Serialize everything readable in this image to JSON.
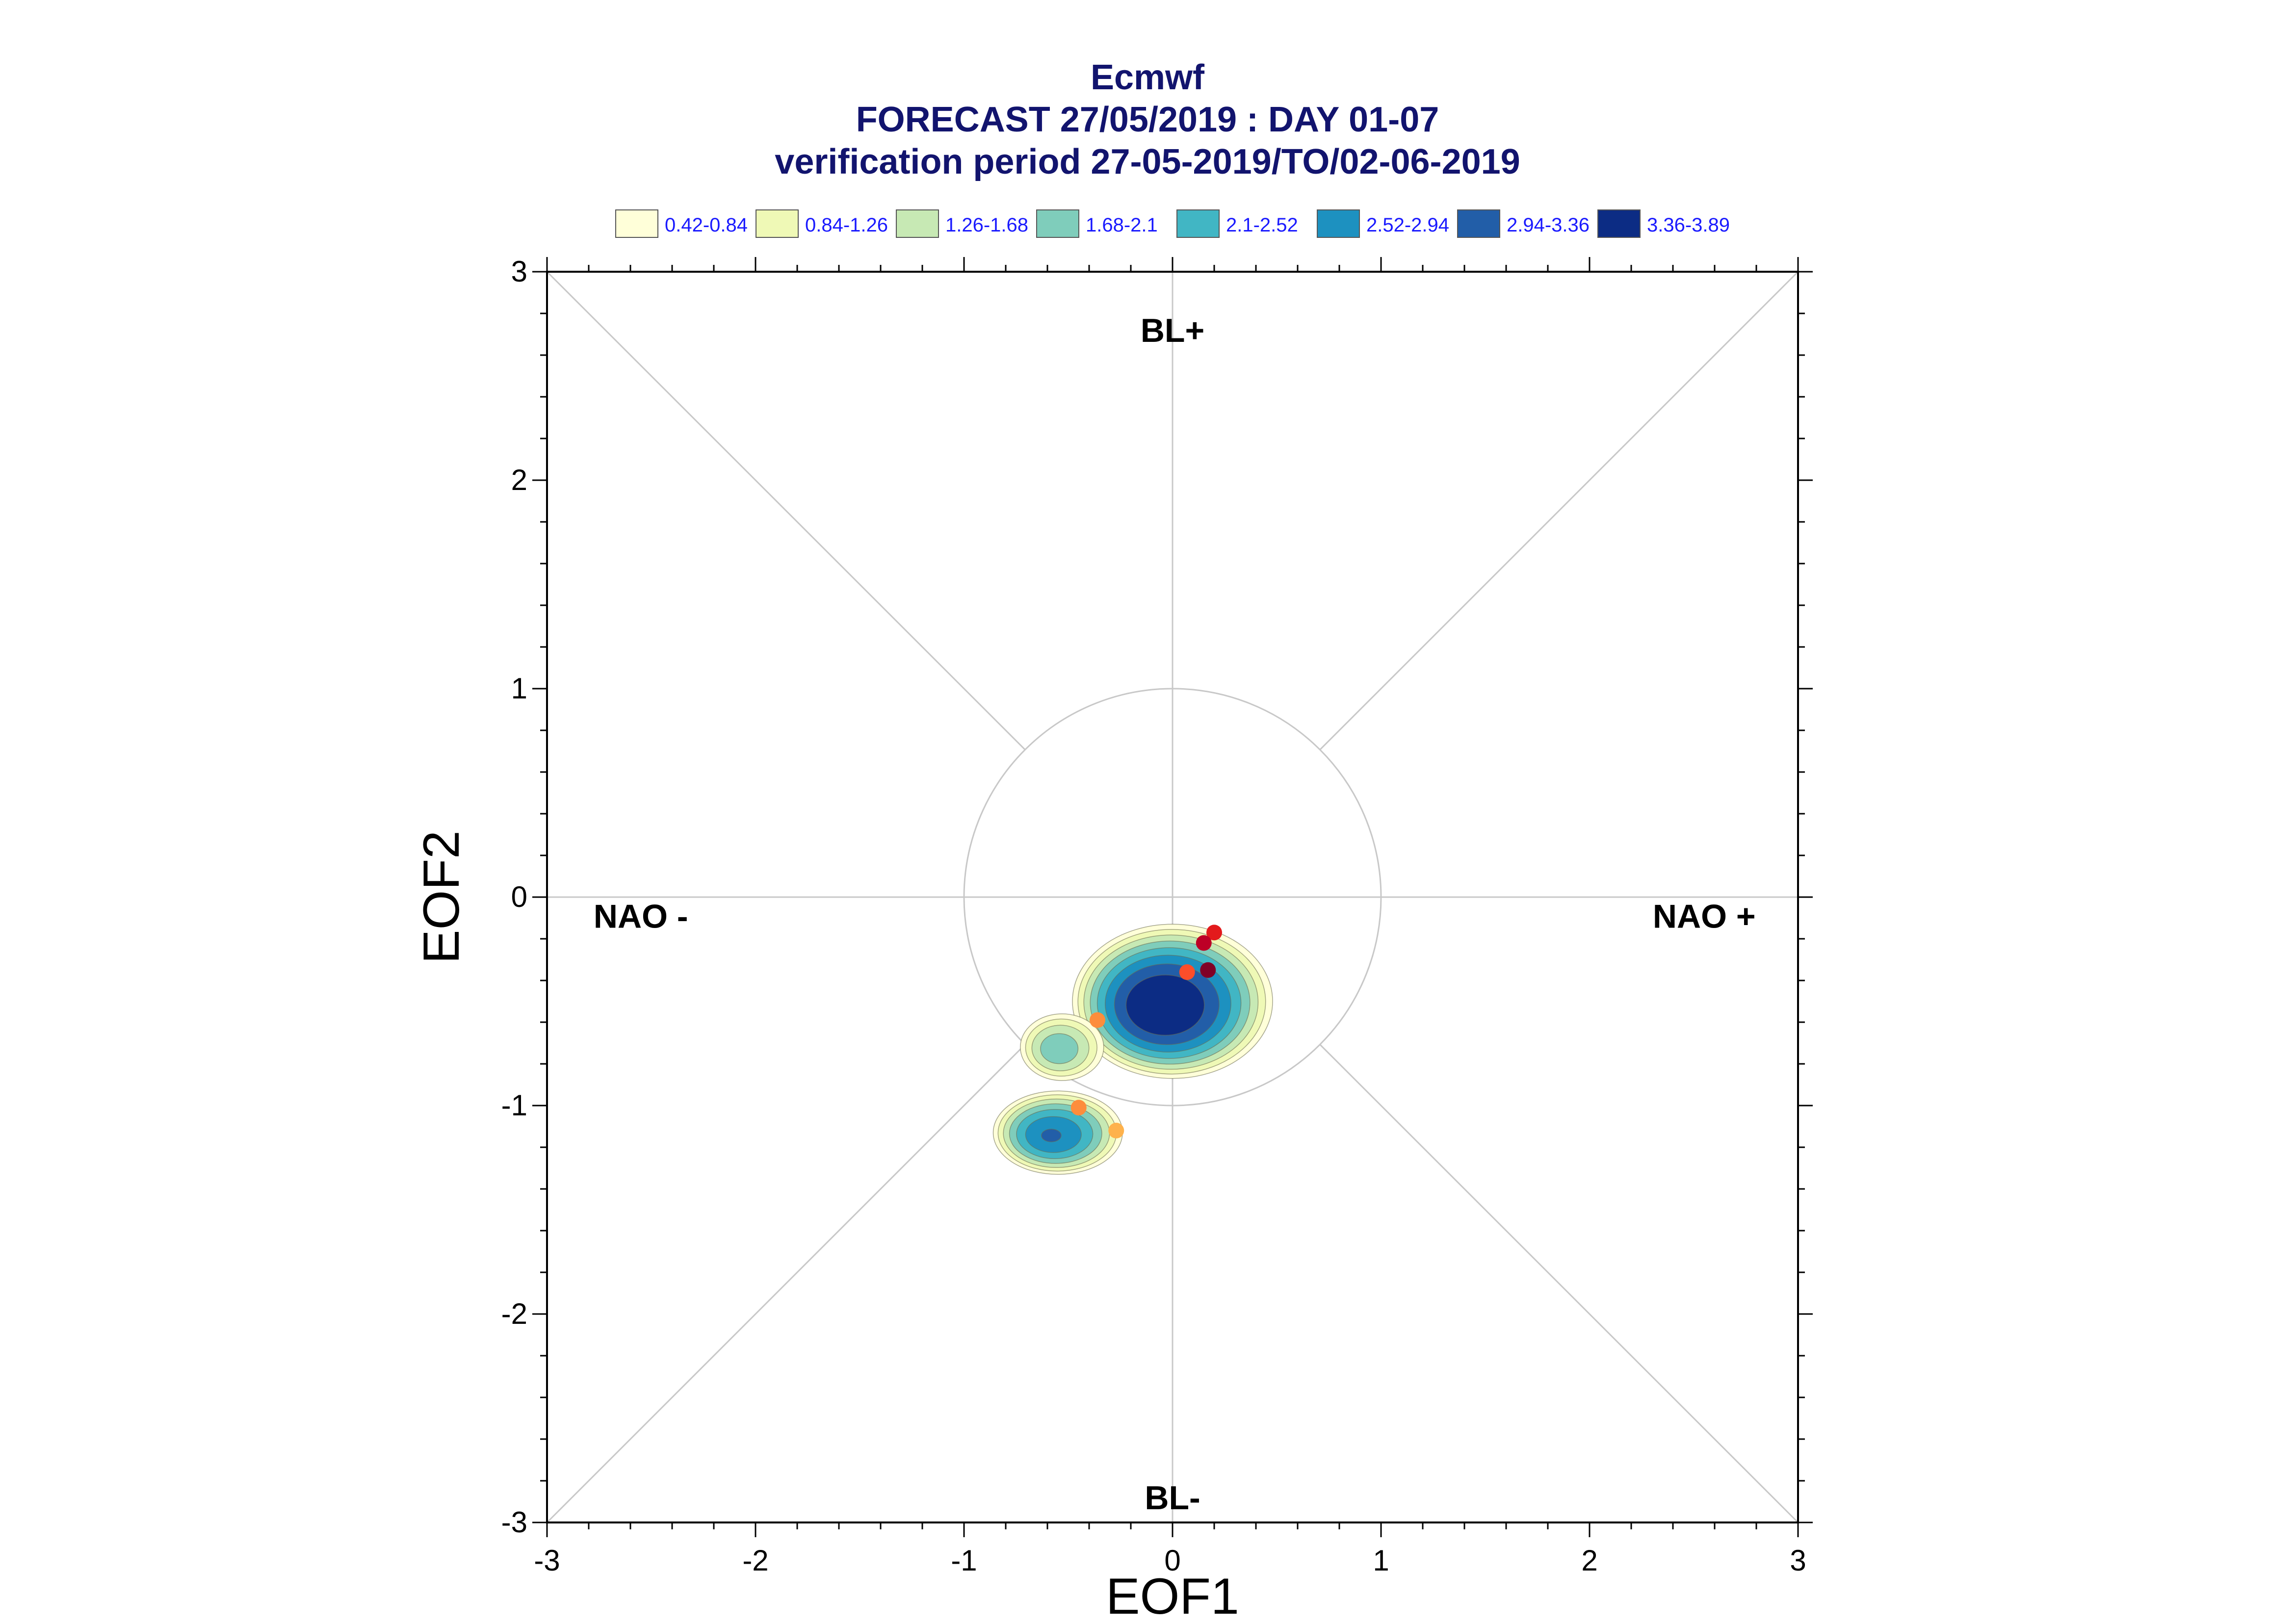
{
  "chart_data": {
    "type": "scatter",
    "title": "Ecmwf",
    "subtitle": "FORECAST 27/05/2019 : DAY 01-07",
    "subtitle2": "verification period 27-05-2019/TO/02-06-2019",
    "xlabel": "EOF1",
    "ylabel": "EOF2",
    "xlim": [
      -3,
      3
    ],
    "ylim": [
      -3,
      3
    ],
    "xticks": [
      -3,
      -2,
      -1,
      0,
      1,
      2,
      3
    ],
    "yticks": [
      -3,
      -2,
      -1,
      0,
      1,
      2,
      3
    ],
    "reference_circle_radius": 1,
    "diagonal_guides": true,
    "regime_labels": [
      {
        "text": "BL+",
        "x": 0,
        "y": 2.72
      },
      {
        "text": "BL-",
        "x": 0,
        "y": -2.88
      },
      {
        "text": "NAO -",
        "x": -2.55,
        "y": -0.09
      },
      {
        "text": "NAO +",
        "x": 2.55,
        "y": -0.09
      }
    ],
    "legend": {
      "placement": "top",
      "entries": [
        {
          "label": "0.42-0.84",
          "color": "#ffffd9"
        },
        {
          "label": "0.84-1.26",
          "color": "#eff9b6"
        },
        {
          "label": "1.26-1.68",
          "color": "#c7e9b4"
        },
        {
          "label": "1.68-2.1",
          "color": "#7fcdbb"
        },
        {
          "label": "2.1-2.52",
          "color": "#41b6c4"
        },
        {
          "label": "2.52-2.94",
          "color": "#1d91c0"
        },
        {
          "label": "2.94-3.36",
          "color": "#225ea8"
        },
        {
          "label": "3.36-3.89",
          "color": "#0c2c84"
        }
      ]
    },
    "density_blobs": [
      {
        "cx": 0.0,
        "cy": -0.5,
        "rx": 0.48,
        "ry": 0.37,
        "peak": 3.89
      },
      {
        "cx": -0.53,
        "cy": -0.72,
        "rx": 0.2,
        "ry": 0.16,
        "peak": 2.0
      },
      {
        "cx": -0.55,
        "cy": -1.13,
        "rx": 0.31,
        "ry": 0.2,
        "peak": 3.0
      }
    ],
    "points": [
      {
        "x": 0.2,
        "y": -0.17,
        "color": "#e31a1c"
      },
      {
        "x": 0.15,
        "y": -0.22,
        "color": "#bd0026"
      },
      {
        "x": 0.07,
        "y": -0.36,
        "color": "#fc4e2a"
      },
      {
        "x": 0.17,
        "y": -0.35,
        "color": "#800026"
      },
      {
        "x": -0.36,
        "y": -0.59,
        "color": "#fd8d3c"
      },
      {
        "x": -0.45,
        "y": -1.01,
        "color": "#fd8d3c"
      },
      {
        "x": -0.27,
        "y": -1.12,
        "color": "#feb24c"
      }
    ],
    "colors": {
      "title": "#12146e",
      "legend_text": "#1a1aff",
      "guide_lines": "#c8c8c8",
      "frame": "#000000"
    }
  }
}
